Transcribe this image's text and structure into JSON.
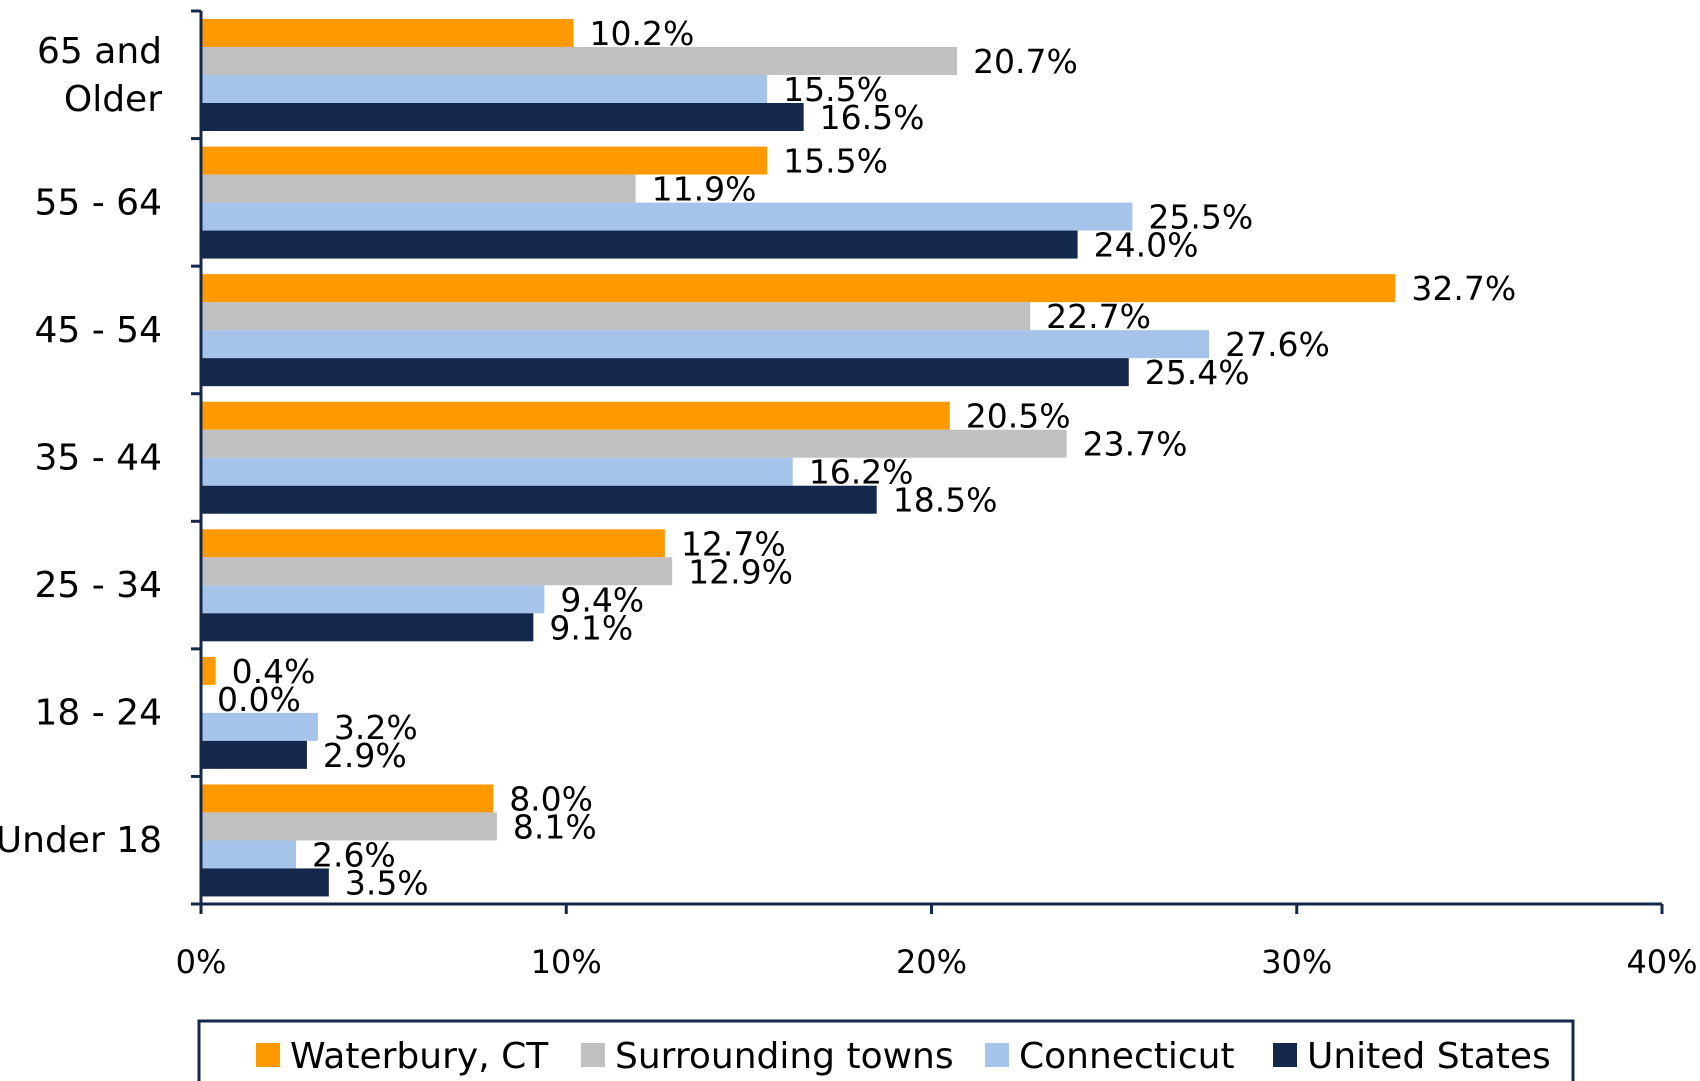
{
  "chart_data": {
    "type": "bar",
    "orientation": "horizontal",
    "categories": [
      "Under 18",
      "18 - 24",
      "25 - 34",
      "35 - 44",
      "45 - 54",
      "55 - 64",
      "65 and Older"
    ],
    "category_lines": [
      [
        "Under 18"
      ],
      [
        "18 - 24"
      ],
      [
        "25 - 34"
      ],
      [
        "35 - 44"
      ],
      [
        "45 - 54"
      ],
      [
        "55 - 64"
      ],
      [
        "65 and",
        "Older"
      ]
    ],
    "series": [
      {
        "name": "Waterbury, CT",
        "color": "#ff9900",
        "values": [
          8.0,
          0.4,
          12.7,
          20.5,
          32.7,
          15.5,
          10.2
        ],
        "labels": [
          "8.0%",
          "0.4%",
          "12.7%",
          "20.5%",
          "32.7%",
          "15.5%",
          "10.2%"
        ]
      },
      {
        "name": "Surrounding towns",
        "color": "#c0c0c0",
        "values": [
          8.1,
          0.0,
          12.9,
          23.7,
          22.7,
          11.9,
          20.7
        ],
        "labels": [
          "8.1%",
          "0.0%",
          "12.9%",
          "23.7%",
          "22.7%",
          "11.9%",
          "20.7%"
        ]
      },
      {
        "name": "Connecticut",
        "color": "#a6c3ea",
        "values": [
          2.6,
          3.2,
          9.4,
          16.2,
          27.6,
          25.5,
          15.5
        ],
        "labels": [
          "2.6%",
          "3.2%",
          "9.4%",
          "16.2%",
          "27.6%",
          "25.5%",
          "15.5%"
        ]
      },
      {
        "name": "United States",
        "color": "#13284b",
        "values": [
          3.5,
          2.9,
          9.1,
          18.5,
          25.4,
          24.0,
          16.5
        ],
        "labels": [
          "3.5%",
          "2.9%",
          "9.1%",
          "18.5%",
          "25.4%",
          "24.0%",
          "16.5%"
        ]
      }
    ],
    "xlim": [
      0,
      40
    ],
    "x_ticks": [
      0,
      10,
      20,
      30,
      40
    ],
    "x_tick_labels": [
      "0%",
      "10%",
      "20%",
      "30%",
      "40%"
    ],
    "legend_position": "bottom",
    "grid": false,
    "axis_color": "#13284b"
  }
}
